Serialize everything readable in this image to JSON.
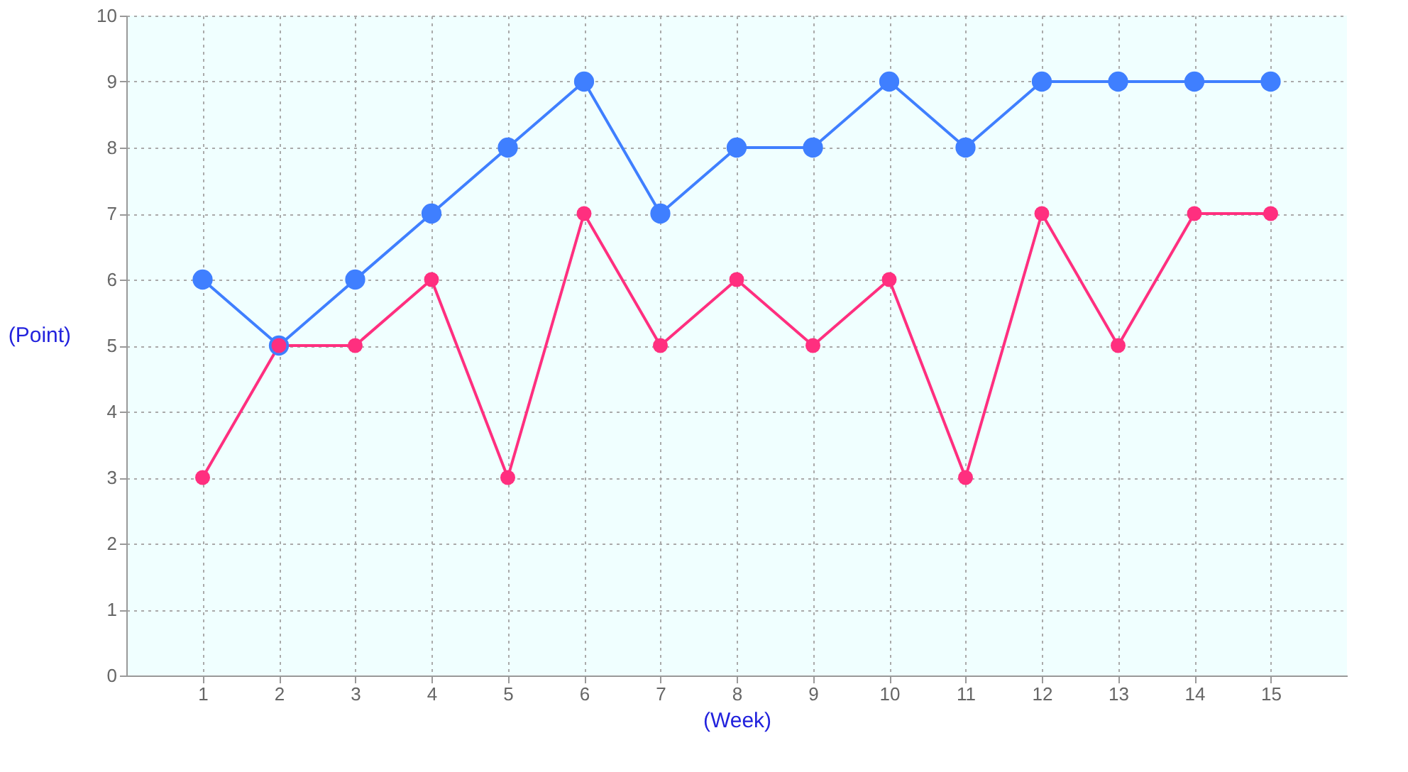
{
  "chart_data": {
    "type": "line",
    "xlabel": "(Week)",
    "ylabel": "(Point)",
    "x": [
      1,
      2,
      3,
      4,
      5,
      6,
      7,
      8,
      9,
      10,
      11,
      12,
      13,
      14,
      15
    ],
    "series": [
      {
        "color": "#3f7fff",
        "values": [
          6,
          5,
          6,
          7,
          8,
          9,
          7,
          8,
          8,
          9,
          8,
          9,
          9,
          9,
          9
        ]
      },
      {
        "color": "#ff2f7f",
        "values": [
          3,
          5,
          5,
          6,
          3,
          7,
          5,
          6,
          5,
          6,
          3,
          7,
          5,
          7,
          7
        ]
      }
    ],
    "xlim": [
      0,
      16
    ],
    "xticks": [
      1,
      2,
      3,
      4,
      5,
      6,
      7,
      8,
      9,
      10,
      11,
      12,
      13,
      14,
      15
    ],
    "ylim": [
      0,
      10
    ],
    "yticks": [
      0,
      1,
      2,
      3,
      4,
      5,
      6,
      7,
      8,
      9,
      10
    ],
    "grid": true,
    "marker": "circle",
    "line_style": "solid"
  }
}
